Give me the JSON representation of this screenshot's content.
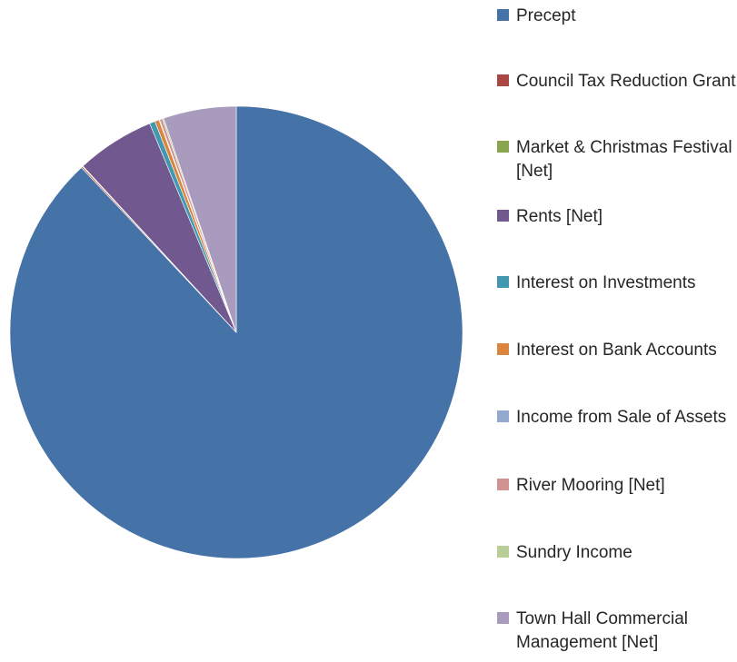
{
  "chart_data": {
    "type": "pie",
    "title": "",
    "legend_position": "right",
    "categories": [
      "Precept",
      "Council Tax Reduction Grant",
      "Market & Christmas Festival [Net]",
      "Rents [Net]",
      "Interest on Investments",
      "Interest on Bank Accounts",
      "Income from Sale of Assets",
      "River Mooring [Net]",
      "Sundry Income",
      "Town Hall Commercial Management [Net]"
    ],
    "values": [
      88.0,
      0.1,
      0.05,
      5.6,
      0.4,
      0.3,
      0.05,
      0.2,
      0.1,
      5.2
    ],
    "colors": [
      "#4572A7",
      "#AA4643",
      "#89A54E",
      "#71588F",
      "#4198AF",
      "#DB843D",
      "#93A9CF",
      "#D19392",
      "#B9CD96",
      "#A99BBD"
    ]
  },
  "legend": {
    "labels": [
      "Precept",
      "Council Tax Reduction Grant",
      "Market & Christmas Festival [Net]",
      "Rents [Net]",
      "Interest on Investments",
      "Interest on Bank Accounts",
      "Income from Sale of Assets",
      "River Mooring [Net]",
      "Sundry Income",
      "Town Hall Commercial Management [Net]"
    ]
  }
}
